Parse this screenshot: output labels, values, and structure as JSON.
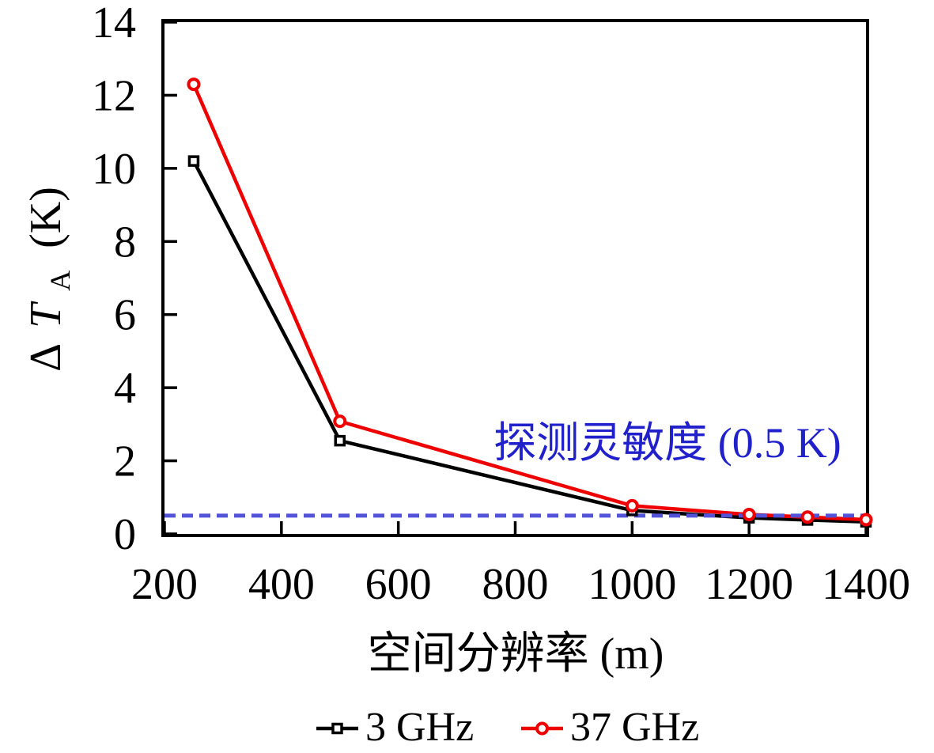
{
  "figure": {
    "background": "#ffffff",
    "axis_color": "#000000"
  },
  "chart_data": {
    "type": "line",
    "title": "",
    "xlabel": "空间分辨率 (m)",
    "ylabel": "ΔT_A (K)",
    "ylabel_parts": {
      "delta": "Δ",
      "symbol": "T",
      "subscript": "A",
      "unit": "(K)"
    },
    "xlim": [
      200,
      1400
    ],
    "ylim": [
      0,
      14
    ],
    "xticks": [
      200,
      400,
      600,
      800,
      1000,
      1200,
      1400
    ],
    "yticks": [
      0,
      2,
      4,
      6,
      8,
      10,
      12,
      14
    ],
    "grid": false,
    "legend_position": "bottom-center",
    "x": [
      250,
      500,
      1000,
      1200,
      1300,
      1400
    ],
    "series": [
      {
        "name": "3 GHz",
        "color": "#000000",
        "marker": "square",
        "values": [
          10.2,
          2.55,
          0.64,
          0.44,
          0.38,
          0.33
        ]
      },
      {
        "name": "37 GHz",
        "color": "#ee0000",
        "marker": "circle",
        "values": [
          12.3,
          3.08,
          0.77,
          0.53,
          0.46,
          0.39
        ]
      }
    ],
    "reference_line": {
      "value": 0.5,
      "style": "dashed",
      "color": "#5353d9",
      "label": "探测灵敏度 (0.5 K)",
      "label_color": "#2121cc"
    }
  }
}
